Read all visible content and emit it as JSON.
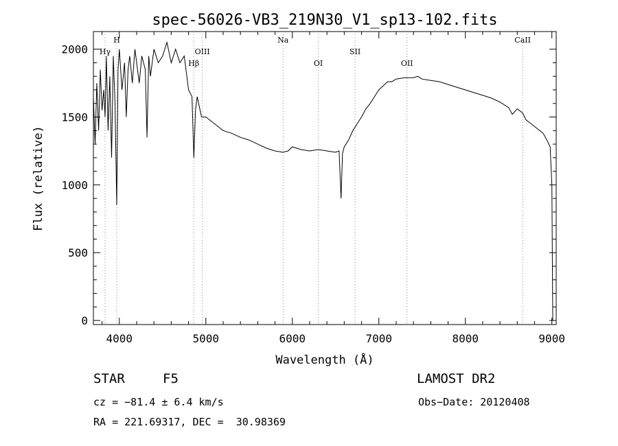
{
  "chart_data": {
    "type": "line",
    "title": "spec-56026-VB3_219N30_V1_sp13-102.fits",
    "xlabel": "Wavelength (Å)",
    "ylabel": "Flux (relative)",
    "xlim": [
      3700,
      9050
    ],
    "ylim": [
      -30,
      2130
    ],
    "x_ticks": [
      4000,
      5000,
      6000,
      7000,
      8000,
      9000
    ],
    "y_ticks": [
      0,
      500,
      1000,
      1500,
      2000
    ],
    "grid": false,
    "legend": "none",
    "colors": {
      "spectrum": "#000000",
      "line_marker": "#888888",
      "frame": "#000000"
    },
    "series": [
      {
        "x": [
          3700,
          3720,
          3740,
          3760,
          3780,
          3800,
          3820,
          3835,
          3850,
          3870,
          3890,
          3910,
          3930,
          3950,
          3970,
          3985,
          4000,
          4030,
          4060,
          4080,
          4101,
          4120,
          4150,
          4180,
          4200,
          4230,
          4260,
          4300,
          4320,
          4340,
          4360,
          4400,
          4450,
          4500,
          4550,
          4600,
          4650,
          4700,
          4750,
          4800,
          4840,
          4861,
          4880,
          4900,
          4950,
          5000,
          5100,
          5200,
          5300,
          5400,
          5500,
          5600,
          5700,
          5800,
          5890,
          5950,
          6000,
          6100,
          6200,
          6300,
          6400,
          6500,
          6540,
          6563,
          6580,
          6600,
          6650,
          6700,
          6750,
          6800,
          6850,
          6900,
          6950,
          7000,
          7050,
          7100,
          7150,
          7200,
          7300,
          7400,
          7450,
          7500,
          7600,
          7700,
          7800,
          7900,
          8000,
          8100,
          8200,
          8300,
          8400,
          8500,
          8542,
          8600,
          8662,
          8700,
          8800,
          8900,
          8950,
          8980,
          9000,
          9010
        ],
        "y": [
          1650,
          1300,
          1750,
          1400,
          1850,
          1550,
          1700,
          1500,
          1950,
          1400,
          1800,
          1200,
          1950,
          1600,
          850,
          1850,
          2000,
          1700,
          1900,
          1500,
          1850,
          1950,
          1750,
          2000,
          1900,
          1750,
          1950,
          1850,
          1350,
          1950,
          1800,
          2000,
          1900,
          1950,
          2050,
          1900,
          2000,
          1900,
          1950,
          1700,
          1650,
          1200,
          1550,
          1650,
          1500,
          1500,
          1450,
          1400,
          1380,
          1350,
          1330,
          1300,
          1270,
          1250,
          1240,
          1250,
          1280,
          1260,
          1250,
          1260,
          1250,
          1240,
          1250,
          900,
          1230,
          1280,
          1330,
          1400,
          1450,
          1500,
          1560,
          1600,
          1650,
          1700,
          1730,
          1760,
          1760,
          1780,
          1790,
          1790,
          1800,
          1780,
          1770,
          1760,
          1740,
          1720,
          1700,
          1680,
          1660,
          1640,
          1610,
          1570,
          1520,
          1560,
          1530,
          1480,
          1430,
          1380,
          1320,
          1280,
          1000,
          0
        ]
      }
    ],
    "line_markers": [
      {
        "label": "Hγ",
        "x": 3835
      },
      {
        "label": "H",
        "x": 3970
      },
      {
        "label": "Hβ",
        "x": 4861
      },
      {
        "label": "OIII",
        "x": 4959
      },
      {
        "label": "Na",
        "x": 5893
      },
      {
        "label": "OI",
        "x": 6300
      },
      {
        "label": "SII",
        "x": 6725
      },
      {
        "label": "OII",
        "x": 7325
      },
      {
        "label": "CaII",
        "x": 8662
      }
    ]
  },
  "info": {
    "object_class": "STAR",
    "subclass": "F5",
    "survey": "LAMOST DR2",
    "cz": "cz = −81.4 ± 6.4 km/s",
    "obs_date": "Obs−Date: 20120408",
    "coords": "RA = 221.69317, DEC =  30.98369"
  }
}
